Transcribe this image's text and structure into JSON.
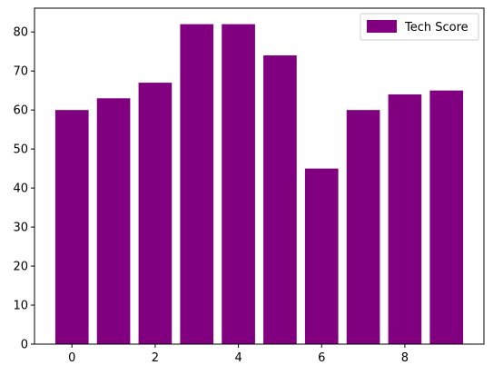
{
  "chart_data": {
    "type": "bar",
    "x": [
      0,
      1,
      2,
      3,
      4,
      5,
      6,
      7,
      8,
      9
    ],
    "series": [
      {
        "name": "Tech Score",
        "values": [
          60,
          63,
          67,
          82,
          82,
          74,
          45,
          60,
          64,
          65
        ],
        "color": "#800080"
      }
    ],
    "xticks": [
      0,
      2,
      4,
      6,
      8
    ],
    "yticks": [
      0,
      10,
      20,
      30,
      40,
      50,
      60,
      70,
      80
    ],
    "xlim": [
      -0.9,
      9.9
    ],
    "ylim": [
      0,
      86.1
    ],
    "grid": false,
    "legend": "top-right",
    "title": "",
    "xlabel": "",
    "ylabel": ""
  }
}
